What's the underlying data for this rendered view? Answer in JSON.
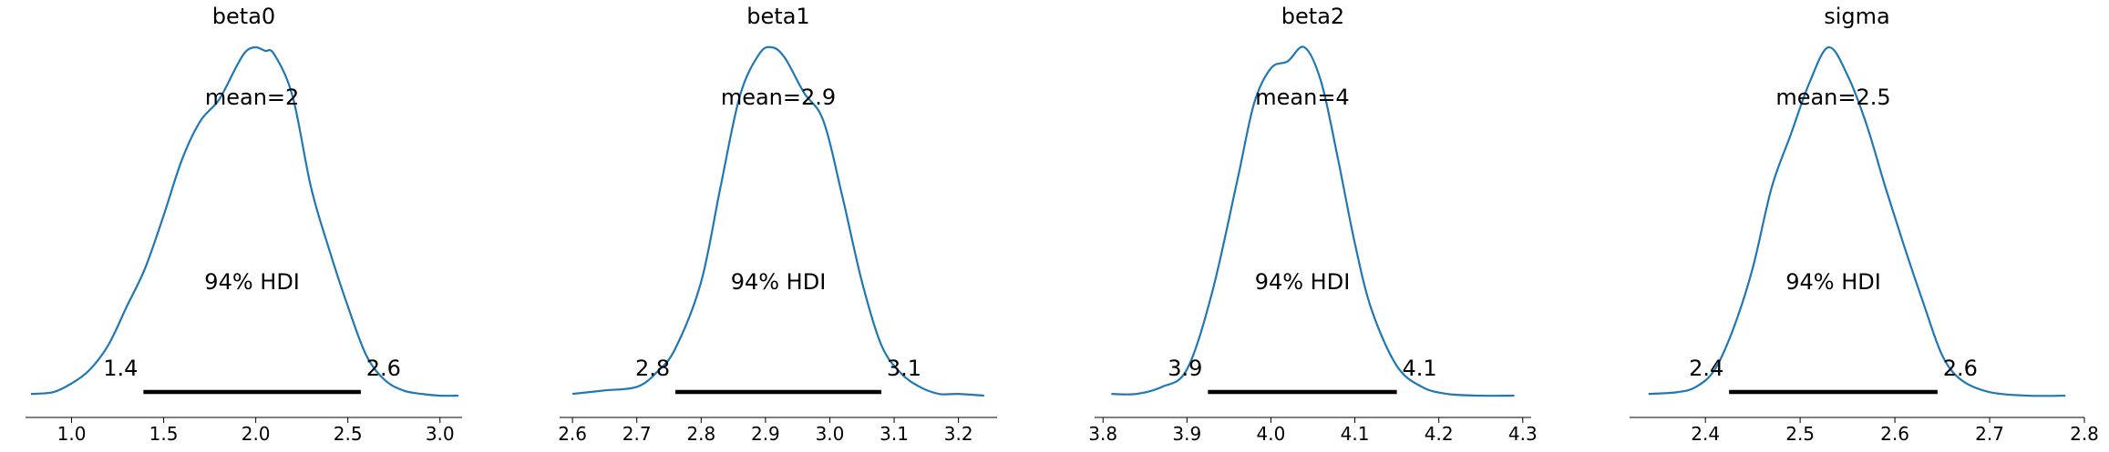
{
  "chart_data": [
    {
      "type": "area",
      "title": "beta0",
      "xlim": [
        0.75,
        3.12
      ],
      "xticks": [
        1.0,
        1.5,
        2.0,
        2.5,
        3.0
      ],
      "xtick_labels": [
        "1.0",
        "1.5",
        "2.0",
        "2.5",
        "3.0"
      ],
      "density": {
        "x": [
          0.78,
          0.9,
          1.0,
          1.1,
          1.2,
          1.3,
          1.4,
          1.5,
          1.6,
          1.7,
          1.8,
          1.9,
          1.95,
          2.0,
          2.05,
          2.1,
          2.2,
          2.3,
          2.4,
          2.5,
          2.6,
          2.7,
          2.8,
          2.9,
          3.0,
          3.1
        ],
        "y": [
          0.01,
          0.015,
          0.04,
          0.08,
          0.15,
          0.26,
          0.37,
          0.52,
          0.68,
          0.79,
          0.85,
          0.95,
          0.99,
          1.0,
          0.99,
          0.98,
          0.86,
          0.6,
          0.42,
          0.26,
          0.12,
          0.05,
          0.02,
          0.01,
          0.005,
          0.005
        ]
      },
      "mean_label": "mean=2",
      "hdi_label": "94% HDI",
      "hdi": [
        1.39,
        2.57
      ],
      "hdi_lower_label": "1.4",
      "hdi_upper_label": "2.6"
    },
    {
      "type": "area",
      "title": "beta1",
      "xlim": [
        2.58,
        3.26
      ],
      "xticks": [
        2.6,
        2.7,
        2.8,
        2.9,
        3.0,
        3.1,
        3.2
      ],
      "xtick_labels": [
        "2.6",
        "2.7",
        "2.8",
        "2.9",
        "3.0",
        "3.1",
        "3.2"
      ],
      "density": {
        "x": [
          2.6,
          2.65,
          2.7,
          2.73,
          2.76,
          2.8,
          2.83,
          2.86,
          2.89,
          2.91,
          2.93,
          2.96,
          2.99,
          3.02,
          3.05,
          3.08,
          3.11,
          3.14,
          3.17,
          3.2,
          3.24
        ],
        "y": [
          0.01,
          0.02,
          0.03,
          0.07,
          0.14,
          0.33,
          0.6,
          0.86,
          0.98,
          1.0,
          0.97,
          0.87,
          0.79,
          0.57,
          0.33,
          0.15,
          0.07,
          0.03,
          0.01,
          0.01,
          0.005
        ]
      },
      "mean_label": "mean=2.9",
      "hdi_label": "94% HDI",
      "hdi": [
        2.76,
        3.08
      ],
      "hdi_lower_label": "2.8",
      "hdi_upper_label": "3.1"
    },
    {
      "type": "area",
      "title": "beta2",
      "xlim": [
        3.79,
        4.31
      ],
      "xticks": [
        3.8,
        3.9,
        4.0,
        4.1,
        4.2,
        4.3
      ],
      "xtick_labels": [
        "3.8",
        "3.9",
        "4.0",
        "4.1",
        "4.2",
        "4.3"
      ],
      "density": {
        "x": [
          3.81,
          3.84,
          3.87,
          3.9,
          3.93,
          3.96,
          3.98,
          4.0,
          4.02,
          4.04,
          4.06,
          4.08,
          4.1,
          4.12,
          4.15,
          4.18,
          4.21,
          4.25,
          4.29
        ],
        "y": [
          0.01,
          0.01,
          0.03,
          0.08,
          0.3,
          0.62,
          0.84,
          0.94,
          0.96,
          1.0,
          0.9,
          0.68,
          0.44,
          0.25,
          0.09,
          0.03,
          0.01,
          0.005,
          0.005
        ]
      },
      "mean_label": "mean=4",
      "hdi_label": "94% HDI",
      "hdi": [
        3.925,
        4.15
      ],
      "hdi_lower_label": "3.9",
      "hdi_upper_label": "4.1"
    },
    {
      "type": "area",
      "title": "sigma",
      "xlim": [
        2.32,
        2.8
      ],
      "xticks": [
        2.4,
        2.5,
        2.6,
        2.7,
        2.8
      ],
      "xtick_labels": [
        "2.4",
        "2.5",
        "2.6",
        "2.7",
        "2.8"
      ],
      "density": {
        "x": [
          2.34,
          2.37,
          2.39,
          2.41,
          2.43,
          2.45,
          2.47,
          2.49,
          2.51,
          2.53,
          2.55,
          2.57,
          2.59,
          2.61,
          2.63,
          2.65,
          2.67,
          2.7,
          2.74,
          2.78
        ],
        "y": [
          0.01,
          0.015,
          0.03,
          0.08,
          0.2,
          0.37,
          0.6,
          0.75,
          0.9,
          1.0,
          0.92,
          0.78,
          0.6,
          0.43,
          0.27,
          0.12,
          0.05,
          0.015,
          0.005,
          0.005
        ]
      },
      "mean_label": "mean=2.5",
      "hdi_label": "94% HDI",
      "hdi": [
        2.425,
        2.645
      ],
      "hdi_lower_label": "2.4",
      "hdi_upper_label": "2.6"
    }
  ],
  "colors": {
    "kde_line": "#1f77b4",
    "hdi_bar": "#000000",
    "axis": "#000000"
  }
}
